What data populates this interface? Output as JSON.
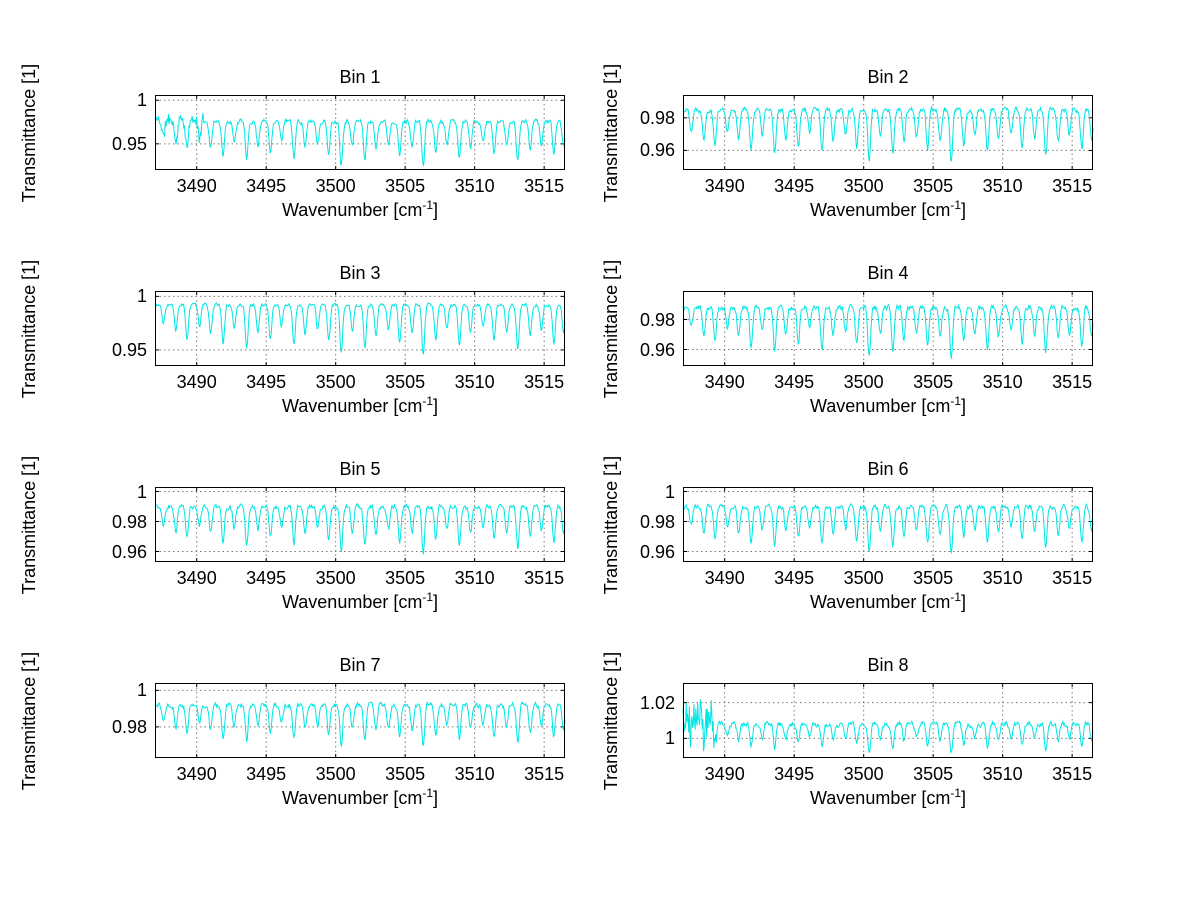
{
  "figure": {
    "background": "#ffffff",
    "axis_color": "#000000",
    "grid_color": "#7a7a7a",
    "line_color": "#00e5e5",
    "font_color": "#000000"
  },
  "xlabel": {
    "pre": "Wavenumber [cm",
    "sup": "-1",
    "post": "]"
  },
  "ylabel": "Transmittance [1]",
  "absorption_lines": [
    [
      3487.6,
      0.02
    ],
    [
      3488.5,
      0.028
    ],
    [
      3489.3,
      0.035
    ],
    [
      3490.2,
      0.022
    ],
    [
      3491.0,
      0.03
    ],
    [
      3491.9,
      0.04
    ],
    [
      3492.7,
      0.025
    ],
    [
      3493.6,
      0.045
    ],
    [
      3494.4,
      0.028
    ],
    [
      3495.3,
      0.035
    ],
    [
      3496.1,
      0.022
    ],
    [
      3497.0,
      0.042
    ],
    [
      3497.8,
      0.03
    ],
    [
      3498.7,
      0.025
    ],
    [
      3499.5,
      0.038
    ],
    [
      3500.4,
      0.05
    ],
    [
      3501.2,
      0.028
    ],
    [
      3502.1,
      0.044
    ],
    [
      3502.9,
      0.032
    ],
    [
      3503.8,
      0.026
    ],
    [
      3504.6,
      0.04
    ],
    [
      3505.5,
      0.03
    ],
    [
      3506.3,
      0.052
    ],
    [
      3507.2,
      0.036
    ],
    [
      3508.0,
      0.026
    ],
    [
      3508.9,
      0.042
    ],
    [
      3509.7,
      0.03
    ],
    [
      3510.6,
      0.024
    ],
    [
      3511.4,
      0.038
    ],
    [
      3512.3,
      0.028
    ],
    [
      3513.1,
      0.046
    ],
    [
      3514.0,
      0.032
    ],
    [
      3514.8,
      0.026
    ],
    [
      3515.7,
      0.04
    ],
    [
      3516.4,
      0.03
    ]
  ],
  "chart_data": [
    {
      "type": "line",
      "title": "Bin 1",
      "xlabel": "Wavenumber [cm^-1]",
      "ylabel": "Transmittance [1]",
      "xlim": [
        3487,
        3516.5
      ],
      "xticks": [
        3490,
        3495,
        3500,
        3505,
        3510,
        3515
      ],
      "ylim": [
        0.92,
        1.006
      ],
      "yticks": [
        0.95,
        1
      ],
      "baseline": 0.976,
      "dip_scale": 1.0,
      "noise": 0.003,
      "seed": 11,
      "edge_noise": {
        "until": 3490.5,
        "amp": 0.006
      }
    },
    {
      "type": "line",
      "title": "Bin 2",
      "xlabel": "Wavenumber [cm^-1]",
      "ylabel": "Transmittance [1]",
      "xlim": [
        3487,
        3516.5
      ],
      "xticks": [
        3490,
        3495,
        3500,
        3505,
        3510,
        3515
      ],
      "ylim": [
        0.948,
        0.994
      ],
      "yticks": [
        0.96,
        0.98
      ],
      "baseline": 0.985,
      "dip_scale": 0.62,
      "noise": 0.0018,
      "seed": 22
    },
    {
      "type": "line",
      "title": "Bin 3",
      "xlabel": "Wavenumber [cm^-1]",
      "ylabel": "Transmittance [1]",
      "xlim": [
        3487,
        3516.5
      ],
      "xticks": [
        3490,
        3495,
        3500,
        3505,
        3510,
        3515
      ],
      "ylim": [
        0.935,
        1.005
      ],
      "yticks": [
        0.95,
        1
      ],
      "baseline": 0.992,
      "dip_scale": 0.9,
      "noise": 0.0018,
      "seed": 33
    },
    {
      "type": "line",
      "title": "Bin 4",
      "xlabel": "Wavenumber [cm^-1]",
      "ylabel": "Transmittance [1]",
      "xlim": [
        3487,
        3516.5
      ],
      "xticks": [
        3490,
        3495,
        3500,
        3505,
        3510,
        3515
      ],
      "ylim": [
        0.949,
        0.999
      ],
      "yticks": [
        0.96,
        0.98
      ],
      "baseline": 0.988,
      "dip_scale": 0.65,
      "noise": 0.002,
      "seed": 44
    },
    {
      "type": "line",
      "title": "Bin 5",
      "xlabel": "Wavenumber [cm^-1]",
      "ylabel": "Transmittance [1]",
      "xlim": [
        3487,
        3516.5
      ],
      "xticks": [
        3490,
        3495,
        3500,
        3505,
        3510,
        3515
      ],
      "ylim": [
        0.953,
        1.003
      ],
      "yticks": [
        0.96,
        0.98,
        1
      ],
      "baseline": 0.99,
      "dip_scale": 0.6,
      "noise": 0.0018,
      "seed": 55
    },
    {
      "type": "line",
      "title": "Bin 6",
      "xlabel": "Wavenumber [cm^-1]",
      "ylabel": "Transmittance [1]",
      "xlim": [
        3487,
        3516.5
      ],
      "xticks": [
        3490,
        3495,
        3500,
        3505,
        3510,
        3515
      ],
      "ylim": [
        0.953,
        1.003
      ],
      "yticks": [
        0.96,
        0.98,
        1
      ],
      "baseline": 0.99,
      "dip_scale": 0.6,
      "noise": 0.0018,
      "seed": 66
    },
    {
      "type": "line",
      "title": "Bin 7",
      "xlabel": "Wavenumber [cm^-1]",
      "ylabel": "Transmittance [1]",
      "xlim": [
        3487,
        3516.5
      ],
      "xticks": [
        3490,
        3495,
        3500,
        3505,
        3510,
        3515
      ],
      "ylim": [
        0.963,
        1.004
      ],
      "yticks": [
        0.98,
        1
      ],
      "baseline": 0.992,
      "dip_scale": 0.45,
      "noise": 0.0016,
      "seed": 77
    },
    {
      "type": "line",
      "title": "Bin 8",
      "xlabel": "Wavenumber [cm^-1]",
      "ylabel": "Transmittance [1]",
      "xlim": [
        3487,
        3516.5
      ],
      "xticks": [
        3490,
        3495,
        3500,
        3505,
        3510,
        3515
      ],
      "ylim": [
        0.989,
        1.031
      ],
      "yticks": [
        1,
        1.02
      ],
      "baseline": 1.008,
      "dip_scale": 0.3,
      "noise": 0.0018,
      "seed": 88,
      "edge_noise": {
        "until": 3489.4,
        "amp": 0.011
      }
    }
  ]
}
